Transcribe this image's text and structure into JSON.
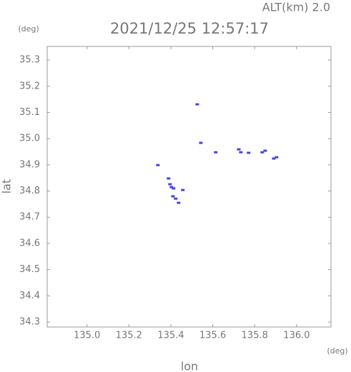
{
  "chart_data": {
    "type": "scatter",
    "title": "2021/12/25 12:57:17",
    "subtitle": "ALT(km) 2.0",
    "x_label": "lon",
    "y_label": "lat",
    "x_unit": "(deg)",
    "y_unit": "(deg)",
    "color": "#4444dd",
    "x": [
      135.526,
      135.543,
      135.614,
      135.724,
      135.734,
      135.771,
      135.836,
      135.85,
      135.891,
      135.904,
      135.338,
      135.389,
      135.396,
      135.403,
      135.413,
      135.457,
      135.41,
      135.423,
      135.437
    ],
    "values": [
      35.131,
      34.984,
      34.948,
      34.959,
      34.948,
      34.946,
      34.948,
      34.954,
      34.924,
      34.929,
      34.899,
      34.848,
      34.826,
      34.815,
      34.81,
      34.804,
      34.78,
      34.771,
      34.755
    ],
    "xlim": [
      134.81,
      136.164
    ],
    "ylim": [
      34.281,
      35.352
    ],
    "xticks": [
      {
        "value": 135,
        "label": "135.0"
      },
      135.2,
      135.4,
      135.6,
      135.8,
      {
        "value": 136,
        "label": "136.0"
      }
    ],
    "yticks": [
      34.3,
      34.4,
      34.5,
      34.6,
      34.7,
      34.8,
      34.9,
      {
        "value": 35,
        "label": "35.0"
      },
      35.1,
      35.2,
      35.3
    ],
    "grid": false
  }
}
